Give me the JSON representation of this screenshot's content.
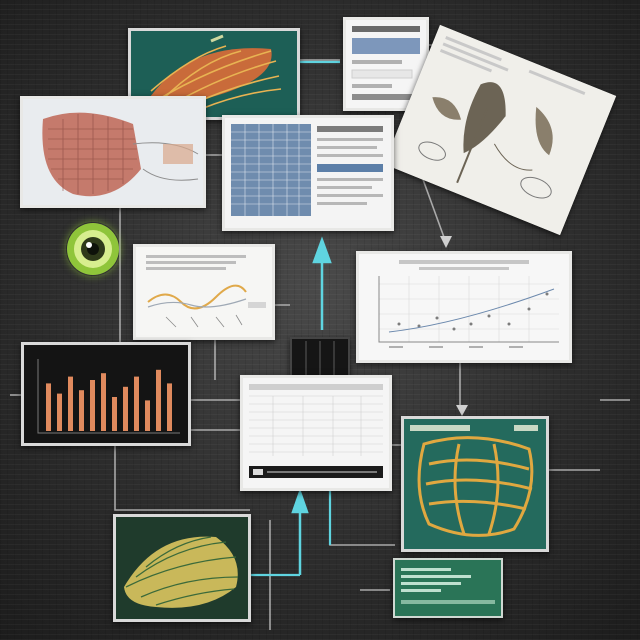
{
  "scene": {
    "kind": "collage-of-screens",
    "colors": {
      "background": "#2d2d2d",
      "wire": "#bfbfbf",
      "accent_cyan": "#5fd4e0",
      "panel_white": "#f3f3f1",
      "panel_teal": "#1f6b60",
      "bar_fill": "#e08a5e",
      "leaf_gold": "#d9a441"
    },
    "icons": [
      "eye-icon",
      "arrow-up-icon",
      "arrow-down-icon"
    ]
  }
}
